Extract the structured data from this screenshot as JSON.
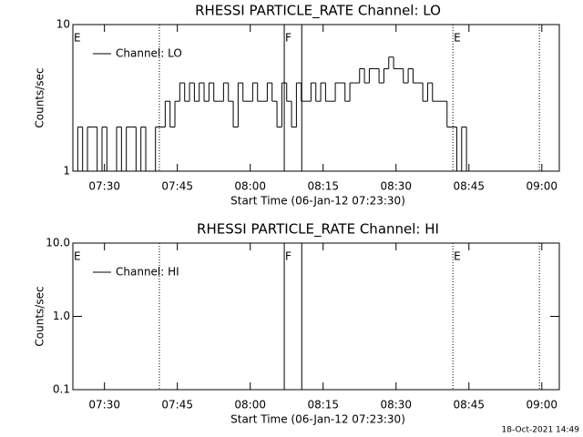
{
  "chart_data": [
    {
      "type": "line",
      "title": "RHESSI PARTICLE_RATE Channel: LO",
      "xlabel": "Start Time (06-Jan-12 07:23:30)",
      "ylabel": "Counts/sec",
      "log_y": true,
      "legend": "upper left",
      "xlim": [
        443.5,
        543.6
      ],
      "xticks": [
        {
          "value": 450,
          "label": "07:30"
        },
        {
          "value": 465,
          "label": "07:45"
        },
        {
          "value": 480,
          "label": "08:00"
        },
        {
          "value": 495,
          "label": "08:15"
        },
        {
          "value": 510,
          "label": "08:30"
        },
        {
          "value": 525,
          "label": "08:45"
        },
        {
          "value": 540,
          "label": "09:00"
        }
      ],
      "ylim": [
        1,
        10
      ],
      "yticks": [
        1,
        10
      ],
      "markers": [
        {
          "x": 443.5,
          "style": "dotted",
          "label": "E"
        },
        {
          "x": 461.3,
          "style": "dotted"
        },
        {
          "x": 487.0,
          "style": "solid",
          "label": "F"
        },
        {
          "x": 490.6,
          "style": "solid"
        },
        {
          "x": 521.7,
          "style": "dotted",
          "label": "E"
        },
        {
          "x": 539.5,
          "style": "dotted"
        }
      ],
      "x": [
        444,
        445,
        446,
        447,
        448,
        449,
        450,
        451,
        452,
        453,
        454,
        455,
        456,
        457,
        458,
        459,
        460,
        461,
        462,
        463,
        464,
        465,
        466,
        467,
        468,
        469,
        470,
        471,
        472,
        473,
        474,
        475,
        476,
        477,
        478,
        479,
        480,
        481,
        482,
        483,
        484,
        485,
        486,
        487,
        488,
        489,
        490,
        491,
        492,
        493,
        494,
        495,
        496,
        497,
        498,
        499,
        500,
        501,
        502,
        503,
        504,
        505,
        506,
        507,
        508,
        509,
        510,
        511,
        512,
        513,
        514,
        515,
        516,
        517,
        518,
        519,
        520,
        521,
        522,
        523,
        524,
        525
      ],
      "series": [
        {
          "name": "Channel: LO",
          "color": "#000000",
          "values": [
            1,
            2,
            1,
            2,
            2,
            1,
            2,
            1,
            1,
            2,
            1,
            2,
            2,
            1,
            2,
            1,
            1,
            2,
            2,
            3,
            2,
            3,
            4,
            3,
            4,
            3,
            4,
            3,
            4,
            3,
            3,
            4,
            3,
            2,
            4,
            3,
            3,
            4,
            3,
            3,
            4,
            3,
            2,
            4,
            3,
            2,
            4,
            3,
            3,
            4,
            3,
            4,
            3,
            3,
            4,
            4,
            3,
            4,
            4,
            5,
            4,
            5,
            5,
            4,
            5,
            6,
            5,
            5,
            4,
            5,
            4,
            4,
            3,
            4,
            3,
            3,
            3,
            2,
            2,
            1,
            2,
            1
          ]
        }
      ]
    },
    {
      "type": "line",
      "title": "RHESSI PARTICLE_RATE Channel: HI",
      "xlabel": "Start Time (06-Jan-12 07:23:30)",
      "ylabel": "Counts/sec",
      "log_y": true,
      "legend": "upper left",
      "xlim": [
        443.5,
        543.6
      ],
      "xticks": [
        {
          "value": 450,
          "label": "07:30"
        },
        {
          "value": 465,
          "label": "07:45"
        },
        {
          "value": 480,
          "label": "08:00"
        },
        {
          "value": 495,
          "label": "08:15"
        },
        {
          "value": 510,
          "label": "08:30"
        },
        {
          "value": 525,
          "label": "08:45"
        },
        {
          "value": 540,
          "label": "09:00"
        }
      ],
      "ylim": [
        0.1,
        10
      ],
      "yticks": [
        {
          "value": 0.1,
          "label": "0.1"
        },
        {
          "value": 1,
          "label": "1.0"
        },
        {
          "value": 10,
          "label": "10.0"
        }
      ],
      "markers": [
        {
          "x": 443.5,
          "style": "dotted",
          "label": "E"
        },
        {
          "x": 461.3,
          "style": "dotted"
        },
        {
          "x": 487.0,
          "style": "solid",
          "label": "F"
        },
        {
          "x": 490.6,
          "style": "solid"
        },
        {
          "x": 521.7,
          "style": "dotted",
          "label": "E"
        },
        {
          "x": 539.5,
          "style": "dotted"
        }
      ],
      "series": [
        {
          "name": "Channel: HI",
          "color": "#000000",
          "values": []
        }
      ]
    }
  ],
  "timestamp": "18-Oct-2021 14:49"
}
